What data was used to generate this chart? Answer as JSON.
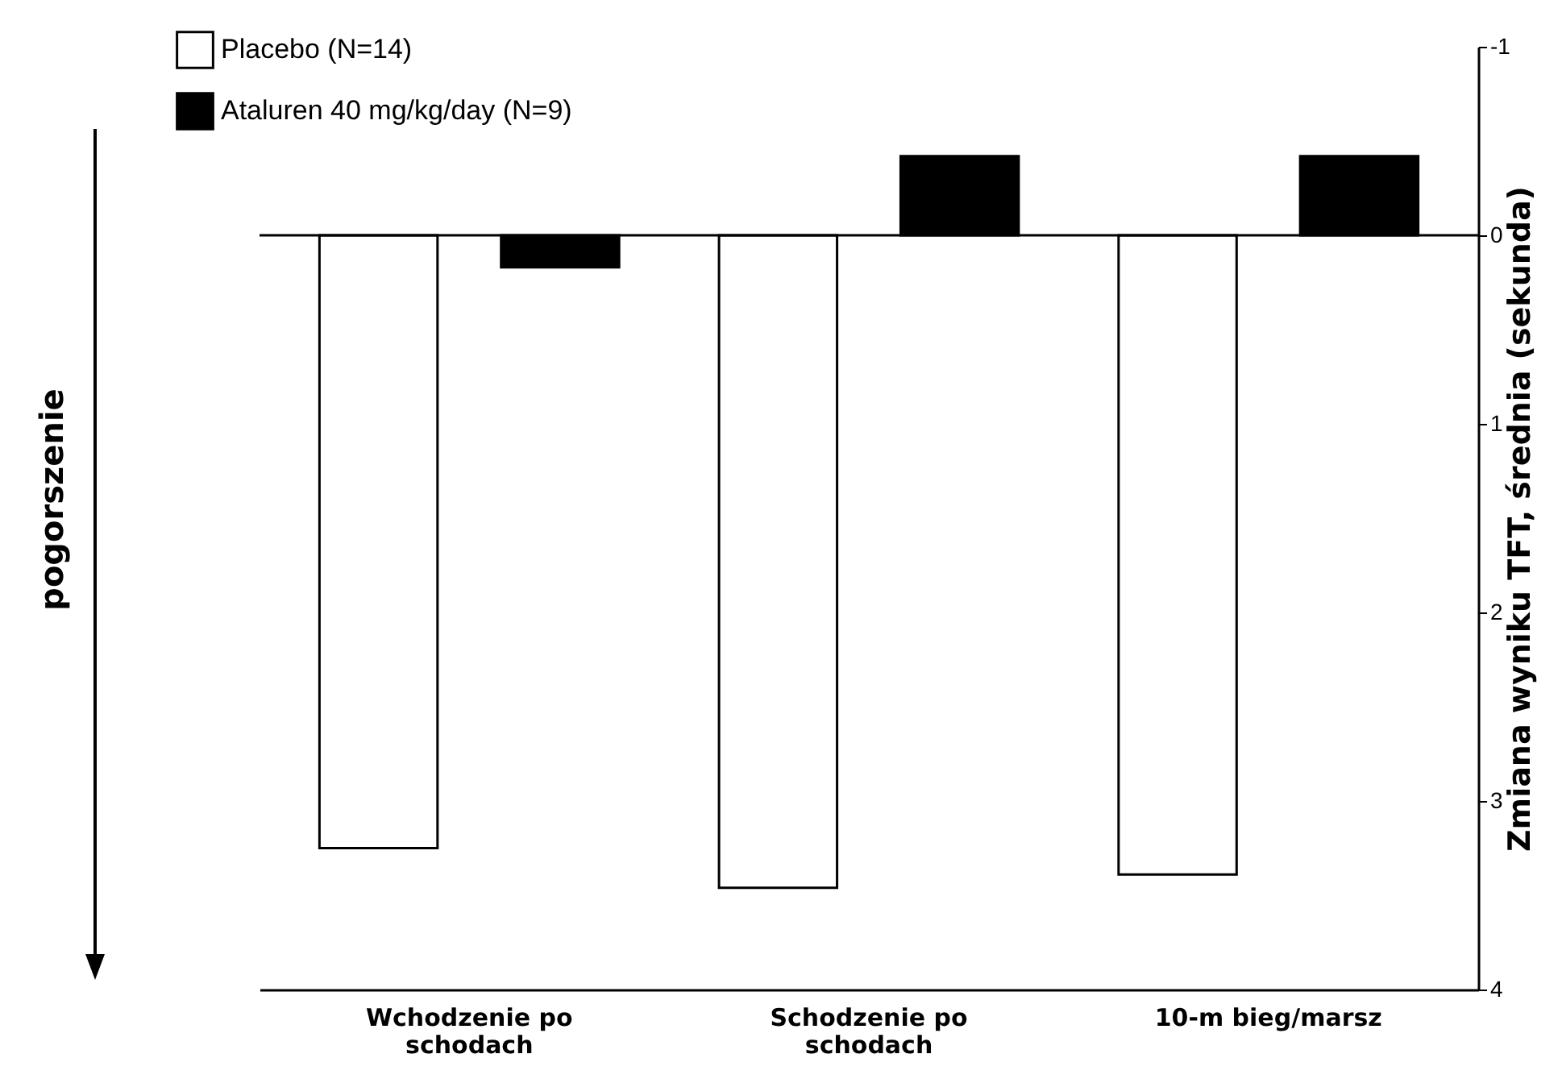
{
  "chart_data": {
    "type": "bar",
    "categories": [
      "Wchodzenie po schodach",
      "Schodzenie po schodach",
      "10-m bieg/marsz"
    ],
    "series": [
      {
        "name": "Placebo (N=14)",
        "color": "#ffffff",
        "values": [
          3.25,
          3.46,
          3.39
        ]
      },
      {
        "name": "Ataluren 40 mg/kg/day (N=9)",
        "color": "#000000",
        "values": [
          0.17,
          -0.42,
          -0.42
        ]
      }
    ],
    "ylabel": "Zmiana wyniku TFT, średnia (sekunda)",
    "ylim": [
      4,
      -1
    ],
    "yticks": [
      -1,
      0,
      1,
      2,
      3,
      4
    ],
    "ref_lines": [
      {
        "axis": "y",
        "value": 0,
        "color": "#000000"
      }
    ],
    "annotations": [
      "pogorszenie"
    ],
    "legend": "top left",
    "grid": false
  }
}
